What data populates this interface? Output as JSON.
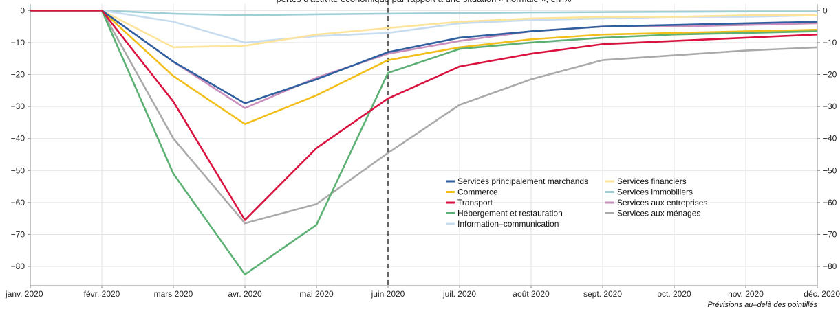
{
  "chart_data": {
    "type": "line",
    "title": "pertes d'activité économique par rapport à une situation « normale », en %",
    "note": "Prévisions au–delà des pointillés",
    "categories": [
      "janv. 2020",
      "févr. 2020",
      "mars 2020",
      "avr. 2020",
      "mai 2020",
      "juin 2020",
      "juil. 2020",
      "août 2020",
      "sept. 2020",
      "oct. 2020",
      "nov. 2020",
      "déc. 2020"
    ],
    "ylim": [
      -86,
      2
    ],
    "yticks": [
      0,
      -10,
      -20,
      -30,
      -40,
      -50,
      -60,
      -70,
      -80
    ],
    "grid": true,
    "forecast_start": "juin 2020",
    "legend_position": "bottom-right",
    "series": [
      {
        "name": "Services principalement marchands",
        "color": "#2f5f9e",
        "values": [
          0,
          0,
          -16,
          -29,
          -21.5,
          -13,
          -8.5,
          -6.5,
          -5,
          -4.5,
          -4,
          -3.5
        ]
      },
      {
        "name": "Commerce",
        "color": "#f2be1a",
        "values": [
          0,
          0,
          -20.5,
          -35.5,
          -26.5,
          -15.5,
          -11.5,
          -9,
          -7.5,
          -7,
          -6.5,
          -6
        ]
      },
      {
        "name": "Transport",
        "color": "#d9123f",
        "values": [
          0,
          0,
          -28.5,
          -65.5,
          -43,
          -27.5,
          -17.5,
          -13.5,
          -10.5,
          -9.5,
          -8.5,
          -7.5
        ]
      },
      {
        "name": "Hébergement et restauration",
        "color": "#5cb074",
        "values": [
          0,
          0,
          -51,
          -82.5,
          -67,
          -19.5,
          -12,
          -10,
          -8.5,
          -7.5,
          -7,
          -6.5
        ]
      },
      {
        "name": "Information–communication",
        "color": "#c7dcef",
        "values": [
          0,
          0,
          -3.5,
          -10,
          -8,
          -7,
          -4,
          -3,
          -2.5,
          -2,
          -2,
          -1.5
        ]
      },
      {
        "name": "Services financiers",
        "color": "#fde49b",
        "values": [
          0,
          0,
          -11.5,
          -11,
          -7.5,
          -5.5,
          -3.5,
          -2.5,
          -2,
          -2,
          -1.5,
          -1.5
        ]
      },
      {
        "name": "Services immobiliers",
        "color": "#9dcfd5",
        "values": [
          0,
          0,
          -1,
          -1.5,
          -1.2,
          -1,
          -0.8,
          -0.6,
          -0.5,
          -0.4,
          -0.3,
          -0.3
        ]
      },
      {
        "name": "Services aux entreprises",
        "color": "#c98fbd",
        "values": [
          0,
          0,
          -16,
          -30.5,
          -21,
          -13.5,
          -9.5,
          -6.5,
          -5,
          -5,
          -4.5,
          -4
        ]
      },
      {
        "name": "Services aux ménages",
        "color": "#aaaaaa",
        "values": [
          0,
          0,
          -40,
          -66.5,
          -60.5,
          -44.5,
          -29.5,
          -21.5,
          -15.5,
          -14,
          -12.5,
          -11.5
        ]
      }
    ],
    "legend_order": [
      [
        "Services principalement marchands",
        "Services financiers"
      ],
      [
        "Commerce",
        "Services immobiliers"
      ],
      [
        "Transport",
        "Services aux entreprises"
      ],
      [
        "Hébergement et restauration",
        "Services aux ménages"
      ],
      [
        "Information–communication",
        null
      ]
    ]
  }
}
